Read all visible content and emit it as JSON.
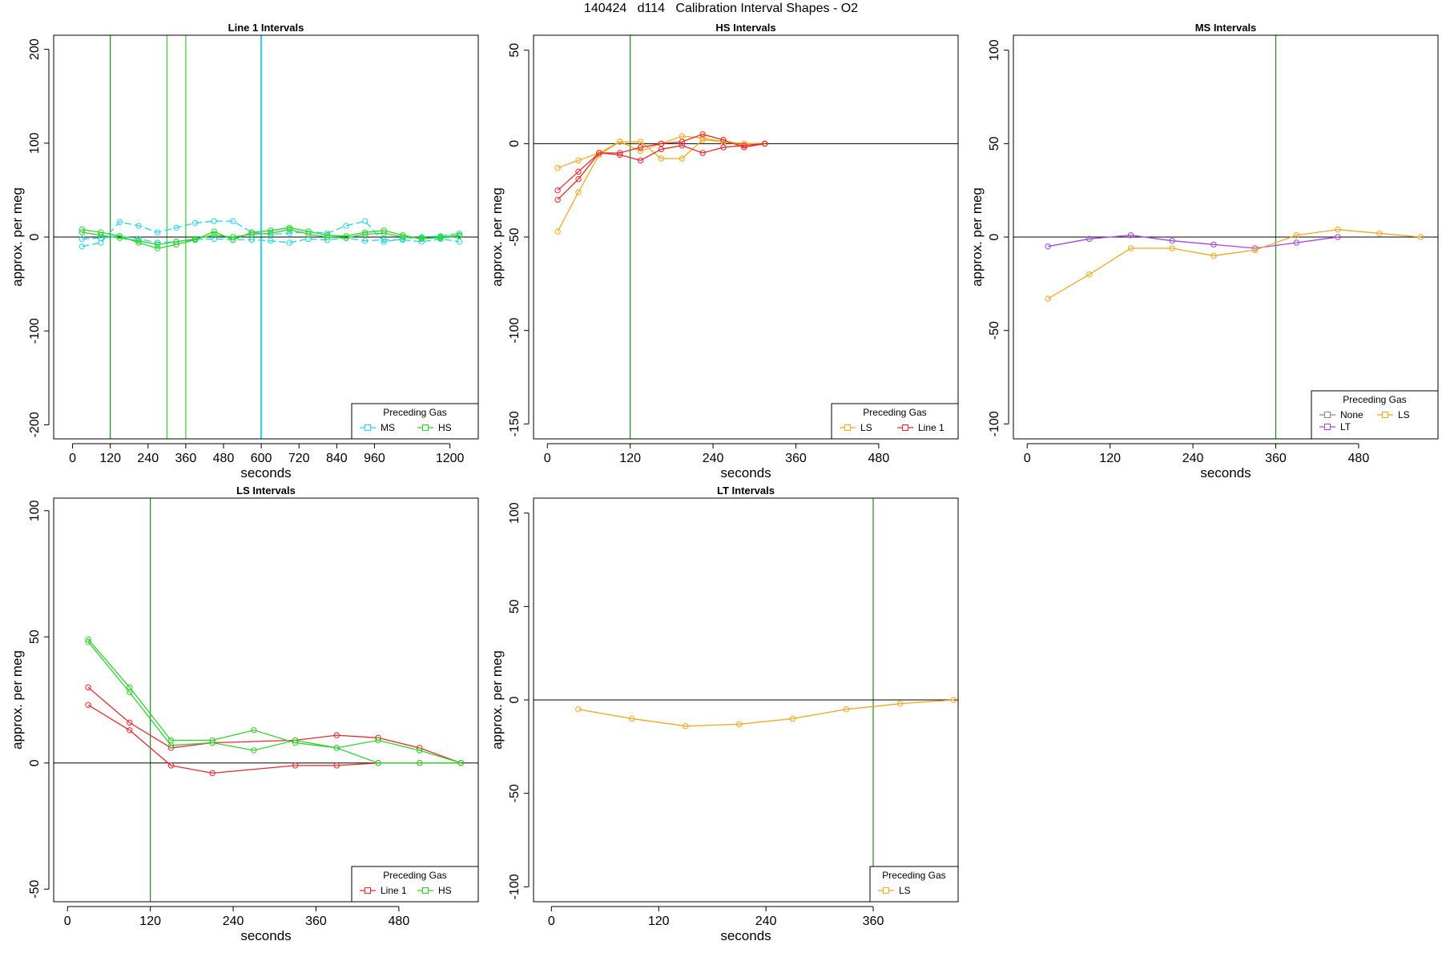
{
  "page": {
    "title": "140424   d114   Calibration Interval Shapes - O2"
  },
  "colors": {
    "MS": "#22d6e8",
    "HS": "#2fd32f",
    "LS": "#f0a81e",
    "Line 1": "#e8282a",
    "LT": "#a843e0",
    "None": "#888888",
    "vline": "#1e8c1e",
    "zero": "#000000"
  },
  "chart_data": [
    {
      "type": "line",
      "title": "Line 1 Intervals",
      "xlabel": "seconds",
      "ylabel": "approx. per meg",
      "xlim": [
        -60,
        1290
      ],
      "ylim": [
        -215,
        215
      ],
      "xticks": [
        0,
        120,
        240,
        360,
        480,
        600,
        720,
        840,
        960,
        1200
      ],
      "yticks": [
        -200,
        -100,
        0,
        100,
        200
      ],
      "vlines": [
        {
          "x": 120,
          "color": "vline"
        },
        {
          "x": 300,
          "color": "HS"
        },
        {
          "x": 360,
          "color": "HS"
        },
        {
          "x": 600,
          "color": "MS"
        }
      ],
      "legend": {
        "title": "Preceding Gas",
        "entries": [
          "MS",
          "HS"
        ],
        "position": "bottom-right"
      },
      "series": [
        {
          "name": "MS",
          "color": "MS",
          "dash": true,
          "x": [
            30,
            90,
            150,
            210,
            270,
            330,
            390,
            450,
            510,
            570,
            630,
            690,
            750,
            810,
            870,
            930,
            990,
            1050,
            1110,
            1170,
            1230
          ],
          "y": [
            -10,
            -6,
            16,
            12,
            5,
            10,
            15,
            17,
            17,
            5,
            3,
            4,
            6,
            4,
            12,
            17,
            -5,
            -2,
            0,
            1,
            4
          ]
        },
        {
          "name": "MS",
          "color": "MS",
          "dash": true,
          "x": [
            30,
            90,
            150,
            210,
            270,
            330,
            390,
            450,
            510,
            570,
            630,
            690,
            750,
            810,
            870,
            930,
            990,
            1050,
            1110,
            1170,
            1230
          ],
          "y": [
            -2,
            -1,
            1,
            -2,
            -6,
            -5,
            -3,
            -2,
            -3,
            -3,
            -4,
            -6,
            -2,
            -3,
            -1,
            -4,
            -3,
            -3,
            -5,
            -2,
            -5
          ]
        },
        {
          "name": "HS",
          "color": "HS",
          "dash": false,
          "x": [
            30,
            90,
            150,
            210,
            270,
            330,
            390,
            450,
            510,
            570,
            630,
            690,
            750,
            810,
            870,
            930,
            990,
            1050,
            1110,
            1170,
            1230
          ],
          "y": [
            8,
            5,
            1,
            -6,
            -12,
            -8,
            -3,
            6,
            -3,
            5,
            7,
            10,
            6,
            2,
            1,
            5,
            7,
            2,
            -2,
            0,
            2
          ]
        },
        {
          "name": "HS",
          "color": "HS",
          "dash": false,
          "x": [
            30,
            90,
            150,
            210,
            270,
            330,
            390,
            450,
            510,
            570,
            630,
            690,
            750,
            810,
            870,
            930,
            990,
            1050,
            1110,
            1170,
            1230
          ],
          "y": [
            5,
            2,
            -1,
            -4,
            -8,
            -5,
            -2,
            2,
            0,
            3,
            4,
            8,
            3,
            0,
            -1,
            3,
            4,
            0,
            -1,
            -1,
            1
          ]
        }
      ]
    },
    {
      "type": "line",
      "title": "HS Intervals",
      "xlabel": "seconds",
      "ylabel": "approx. per meg",
      "xlim": [
        -20,
        595
      ],
      "ylim": [
        -158,
        58
      ],
      "xticks": [
        0,
        120,
        240,
        360,
        480
      ],
      "yticks": [
        -150,
        -100,
        -50,
        0,
        50
      ],
      "vlines": [
        {
          "x": 120,
          "color": "vline"
        }
      ],
      "legend": {
        "title": "Preceding Gas",
        "entries": [
          "LS",
          "Line 1"
        ],
        "position": "bottom-right"
      },
      "series": [
        {
          "name": "LS",
          "color": "LS",
          "dash": false,
          "x": [
            15,
            45,
            75,
            105,
            135,
            165,
            195,
            225,
            255,
            285,
            315
          ],
          "y": [
            -47,
            -26,
            -6,
            1,
            1,
            -8,
            -8,
            2,
            1,
            0,
            0
          ]
        },
        {
          "name": "LS",
          "color": "LS",
          "dash": false,
          "x": [
            15,
            45,
            75,
            105,
            135,
            165,
            195,
            225,
            255,
            285,
            315
          ],
          "y": [
            -13,
            -9,
            -5,
            1,
            -4,
            0,
            4,
            3,
            1,
            -1,
            0
          ]
        },
        {
          "name": "Line 1",
          "color": "Line 1",
          "dash": false,
          "x": [
            15,
            45,
            75,
            105,
            135,
            165,
            195,
            225,
            255,
            285,
            315
          ],
          "y": [
            -25,
            -15,
            -5,
            -5,
            -2,
            0,
            1,
            5,
            2,
            -2,
            0
          ]
        },
        {
          "name": "Line 1",
          "color": "Line 1",
          "dash": false,
          "x": [
            15,
            45,
            75,
            105,
            135,
            165,
            195,
            225,
            255,
            285,
            315
          ],
          "y": [
            -30,
            -19,
            -5,
            -6,
            -9,
            -3,
            -1,
            -5,
            -2,
            -1,
            0
          ]
        }
      ]
    },
    {
      "type": "line",
      "title": "MS Intervals",
      "xlabel": "seconds",
      "ylabel": "approx. per meg",
      "xlim": [
        -20,
        595
      ],
      "ylim": [
        -108,
        108
      ],
      "xticks": [
        0,
        120,
        240,
        360,
        480
      ],
      "yticks": [
        -100,
        -50,
        0,
        50,
        100
      ],
      "vlines": [
        {
          "x": 360,
          "color": "vline"
        }
      ],
      "legend": {
        "title": "Preceding Gas",
        "entries": [
          "None",
          "LS",
          "LT"
        ],
        "position": "bottom-right"
      },
      "series": [
        {
          "name": "LT",
          "color": "LT",
          "dash": false,
          "x": [
            30,
            90,
            150,
            210,
            270,
            330,
            390,
            450
          ],
          "y": [
            -5,
            -1,
            1,
            -2,
            -4,
            -6,
            -3,
            0
          ]
        },
        {
          "name": "LS",
          "color": "LS",
          "dash": false,
          "x": [
            30,
            90,
            150,
            210,
            270,
            330,
            390,
            450,
            510,
            570
          ],
          "y": [
            -33,
            -20,
            -6,
            -6,
            -10,
            -7,
            1,
            4,
            2,
            0
          ]
        }
      ]
    },
    {
      "type": "line",
      "title": "LS Intervals",
      "xlabel": "seconds",
      "ylabel": "approx. per meg",
      "xlim": [
        -20,
        595
      ],
      "ylim": [
        -55,
        105
      ],
      "xticks": [
        0,
        120,
        240,
        360,
        480
      ],
      "yticks": [
        -50,
        0,
        50,
        100
      ],
      "vlines": [
        {
          "x": 120,
          "color": "vline"
        }
      ],
      "legend": {
        "title": "Preceding Gas",
        "entries": [
          "Line 1",
          "HS"
        ],
        "position": "bottom-right"
      },
      "series": [
        {
          "name": "Line 1",
          "color": "Line 1",
          "dash": false,
          "x": [
            30,
            90,
            150,
            210,
            330,
            390,
            450,
            510,
            570
          ],
          "y": [
            30,
            16,
            6,
            8,
            9,
            11,
            10,
            6,
            0
          ]
        },
        {
          "name": "Line 1",
          "color": "Line 1",
          "dash": false,
          "x": [
            30,
            90,
            150,
            210,
            330,
            390,
            450,
            510,
            570
          ],
          "y": [
            23,
            13,
            -1,
            -4,
            -1,
            -1,
            0,
            0,
            0
          ]
        },
        {
          "name": "HS",
          "color": "HS",
          "dash": false,
          "x": [
            30,
            90,
            150,
            210,
            270,
            330,
            390,
            450,
            510,
            570
          ],
          "y": [
            49,
            30,
            9,
            9,
            13,
            8,
            6,
            0,
            0,
            0
          ]
        },
        {
          "name": "HS",
          "color": "HS",
          "dash": false,
          "x": [
            30,
            90,
            150,
            210,
            270,
            330,
            390,
            450,
            510,
            570
          ],
          "y": [
            48,
            28,
            7,
            8,
            5,
            9,
            6,
            9,
            5,
            0
          ]
        }
      ]
    },
    {
      "type": "line",
      "title": "LT Intervals",
      "xlabel": "seconds",
      "ylabel": "approx. per meg",
      "xlim": [
        -20,
        455
      ],
      "ylim": [
        -108,
        108
      ],
      "xticks": [
        0,
        120,
        240,
        360
      ],
      "yticks": [
        -100,
        -50,
        0,
        50,
        100
      ],
      "vlines": [
        {
          "x": 360,
          "color": "vline"
        }
      ],
      "legend": {
        "title": "Preceding Gas",
        "entries": [
          "LS"
        ],
        "position": "bottom-right"
      },
      "series": [
        {
          "name": "LS",
          "color": "LS",
          "dash": false,
          "x": [
            30,
            90,
            150,
            210,
            270,
            330,
            390,
            450
          ],
          "y": [
            -5,
            -10,
            -14,
            -13,
            -10,
            -5,
            -2,
            0
          ]
        }
      ]
    }
  ]
}
